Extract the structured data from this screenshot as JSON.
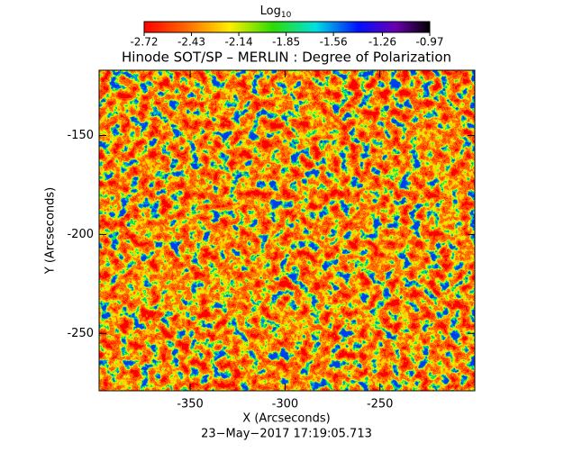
{
  "chart_data": {
    "type": "heatmap",
    "title": "Hinode SOT/SP – MERLIN : Degree of Polarization",
    "colorbar_title": "Log",
    "colorbar_title_subscript": "10",
    "clim": [
      -2.72,
      -0.97
    ],
    "cticks": [
      -2.72,
      -2.43,
      -2.14,
      -1.85,
      -1.56,
      -1.26,
      -0.97
    ],
    "x_label": "X (Arcseconds)",
    "y_label": "Y (Arcseconds)",
    "xlim": [
      -398,
      -200
    ],
    "xticks": [
      -350,
      -300,
      -250
    ],
    "ylim": [
      -279,
      -117
    ],
    "yticks": [
      -250,
      -200,
      -150
    ],
    "footer": "23−May−2017 17:19:05.713"
  }
}
